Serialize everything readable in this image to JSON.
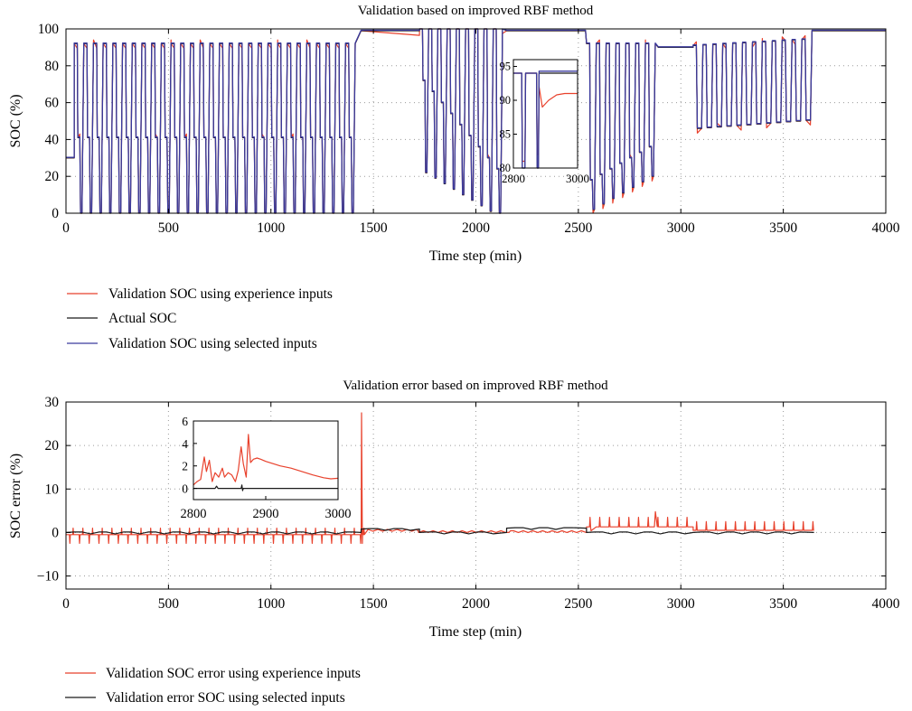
{
  "colors": {
    "experience": "#e8412c",
    "actual": "#1a1a1a",
    "selected": "#3b3a9e",
    "grid": "#9a9a9a",
    "axis": "#000000"
  },
  "chart_data": [
    {
      "type": "line",
      "title": "Validation based on improved RBF method",
      "xlabel": "Time step (min)",
      "ylabel": "SOC (%)",
      "xlim": [
        0,
        4000
      ],
      "ylim": [
        0,
        100
      ],
      "xticks": [
        0,
        500,
        1000,
        1500,
        2000,
        2500,
        3000,
        3500,
        4000
      ],
      "yticks": [
        0,
        20,
        40,
        60,
        80,
        100
      ],
      "grid": true,
      "legend_position": "below",
      "legend": [
        {
          "label": "Validation SOC using experience inputs",
          "color": "#e8412c"
        },
        {
          "label": "Actual SOC",
          "color": "#1a1a1a"
        },
        {
          "label": "Validation SOC using selected inputs",
          "color": "#3b3a9e"
        }
      ],
      "series": [
        {
          "name": "Actual SOC",
          "color": "#1a1a1a",
          "segments": [
            {
              "type": "constant",
              "x_start": 0,
              "x_end": 40,
              "value": 30
            },
            {
              "type": "cycles",
              "x_start": 40,
              "period": 47.3,
              "count": 29,
              "top": 92,
              "mid": 41,
              "bottom": 0
            },
            {
              "type": "constant",
              "x_start": 1440,
              "x_end": 1725,
              "value": 99
            },
            {
              "type": "cycles",
              "x_start": 1725,
              "period": 45,
              "count": 9,
              "top": 100,
              "mid_start": 72,
              "mid_step": -6,
              "bottom_start": 22,
              "bottom_step": -3
            },
            {
              "type": "constant",
              "x_start": 2150,
              "x_end": 2535,
              "value": 99
            },
            {
              "type": "cycles",
              "x_start": 2540,
              "period": 48,
              "count": 7,
              "top": 92,
              "mid_start": 18,
              "mid_step": 3,
              "bottom_start": 2,
              "bottom_step": 3
            },
            {
              "type": "constant",
              "x_start": 2890,
              "x_end": 3060,
              "value": 90
            },
            {
              "type": "cycles",
              "x_start": 3060,
              "period": 48.3,
              "count": 12,
              "top_start": 91,
              "top_step": 0.3,
              "mid_start": 46,
              "mid_step": 0.4
            },
            {
              "type": "constant",
              "x_start": 3640,
              "x_end": 4000,
              "value": 99
            }
          ]
        },
        {
          "name": "Validation SOC using experience inputs",
          "color": "#e8412c",
          "tracks": "Actual SOC",
          "deviation_max_pct": 3
        },
        {
          "name": "Validation SOC using selected inputs",
          "color": "#3b3a9e",
          "tracks": "Actual SOC",
          "deviation_max_pct": 1
        }
      ],
      "inset": {
        "xlim": [
          2800,
          3000
        ],
        "ylim": [
          80,
          96
        ],
        "xticks": [
          2800,
          3000
        ],
        "yticks": [
          80,
          85,
          90,
          95
        ],
        "notes": "Step 94 to 80 near 2830, recovery to 94 near 2840, drop near 2880, then settle near 90-91"
      }
    },
    {
      "type": "line",
      "title": "Validation error based on improved RBF method",
      "xlabel": "Time step (min)",
      "ylabel": "SOC error (%)",
      "xlim": [
        0,
        4000
      ],
      "ylim": [
        -13,
        30
      ],
      "xticks": [
        0,
        500,
        1000,
        1500,
        2000,
        2500,
        3000,
        3500,
        4000
      ],
      "yticks": [
        -10,
        0,
        10,
        20,
        30
      ],
      "grid": true,
      "legend_position": "below",
      "legend": [
        {
          "label": "Validation SOC error using experience inputs",
          "color": "#e8412c"
        },
        {
          "label": "Validation error SOC using selected inputs",
          "color": "#1a1a1a"
        }
      ],
      "series": [
        {
          "name": "Validation SOC error using experience inputs",
          "color": "#e8412c",
          "baseline_segments": [
            {
              "x_start": 0,
              "x_end": 1440,
              "value": -0.5,
              "spikes_down": -2.5,
              "spikes_up": 1
            },
            {
              "x_start": 1440,
              "x_end": 1448,
              "value": 27.5
            },
            {
              "x_start": 1450,
              "x_end": 1720,
              "value": 0.3
            },
            {
              "x_start": 1720,
              "x_end": 2150,
              "value": 0
            },
            {
              "x_start": 2160,
              "x_end": 2540,
              "value": 0
            },
            {
              "x_start": 2540,
              "x_end": 3060,
              "value": 1.3,
              "spikes_up": 3.5
            },
            {
              "x_start": 3060,
              "x_end": 3650,
              "value": 0.5,
              "spikes_up": 2.5
            }
          ]
        },
        {
          "name": "Validation error SOC using selected inputs",
          "color": "#1a1a1a",
          "baseline_segments": [
            {
              "x_start": 0,
              "x_end": 1440,
              "value": 0
            },
            {
              "x_start": 1440,
              "x_end": 1725,
              "value": 0.8
            },
            {
              "x_start": 1725,
              "x_end": 2150,
              "value": 0
            },
            {
              "x_start": 2150,
              "x_end": 2540,
              "value": 1
            },
            {
              "x_start": 2540,
              "x_end": 3060,
              "value": 0
            },
            {
              "x_start": 3060,
              "x_end": 3650,
              "value": 0
            }
          ]
        }
      ],
      "inset": {
        "xlim": [
          2800,
          3000
        ],
        "ylim": [
          -1,
          6
        ],
        "xticks": [
          2800,
          2900,
          3000
        ],
        "yticks": [
          0,
          2,
          4,
          6
        ],
        "experience_points": [
          [
            2800,
            0.3
          ],
          [
            2805,
            0.6
          ],
          [
            2810,
            0.8
          ],
          [
            2815,
            2.8
          ],
          [
            2818,
            1.5
          ],
          [
            2822,
            2.5
          ],
          [
            2826,
            0.6
          ],
          [
            2830,
            1.4
          ],
          [
            2835,
            1.0
          ],
          [
            2840,
            1.8
          ],
          [
            2843,
            1.0
          ],
          [
            2848,
            1.4
          ],
          [
            2853,
            1.2
          ],
          [
            2858,
            0.6
          ],
          [
            2862,
            1.6
          ],
          [
            2866,
            3.7
          ],
          [
            2869,
            2.2
          ],
          [
            2873,
            1.0
          ],
          [
            2876,
            4.8
          ],
          [
            2879,
            2.3
          ],
          [
            2883,
            2.6
          ],
          [
            2888,
            2.7
          ],
          [
            2893,
            2.6
          ],
          [
            2900,
            2.4
          ],
          [
            2910,
            2.2
          ],
          [
            2920,
            2.0
          ],
          [
            2935,
            1.8
          ],
          [
            2950,
            1.5
          ],
          [
            2965,
            1.2
          ],
          [
            2980,
            0.95
          ],
          [
            2990,
            0.85
          ],
          [
            3000,
            0.9
          ]
        ],
        "selected_points": [
          [
            2800,
            0
          ],
          [
            2830,
            0
          ],
          [
            2832,
            0.2
          ],
          [
            2834,
            0
          ],
          [
            2866,
            0
          ],
          [
            2867,
            0.3
          ],
          [
            2868,
            -0.2
          ],
          [
            2869,
            0
          ],
          [
            2900,
            0
          ],
          [
            3000,
            0
          ]
        ]
      }
    }
  ]
}
